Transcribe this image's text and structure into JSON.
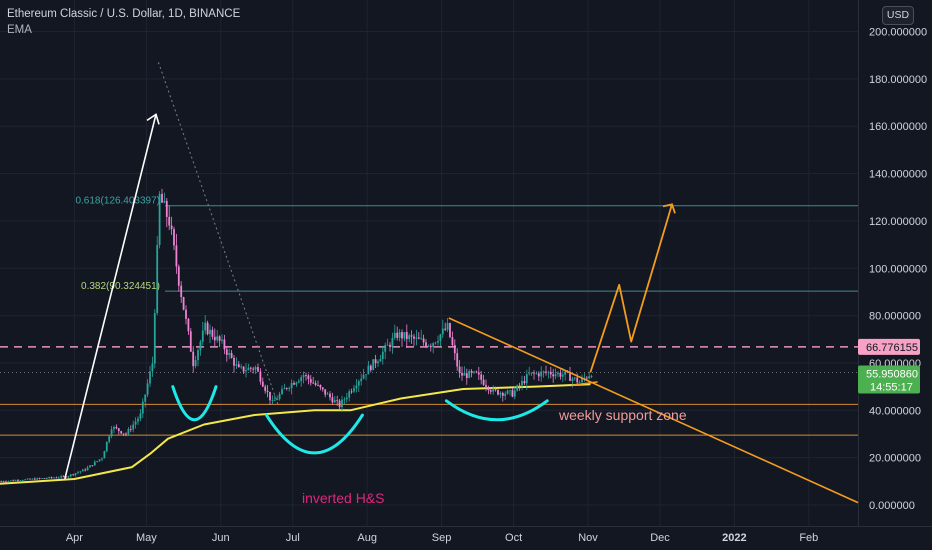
{
  "header": {
    "title": "Ethereum Classic / U.S. Dollar, 1D, BINANCE",
    "indicator": "EMA",
    "currency_button": "USD"
  },
  "colors": {
    "background": "#131722",
    "grid": "#1f2331",
    "axis_text": "#d1d4dc",
    "candle_up": "#26a69a",
    "candle_down": "#ef83d4",
    "ema": "#f3e84b",
    "fib_line": "#3d8c8c",
    "fib_618_text": "#3fa3a3",
    "fib_382_text": "#b7d87a",
    "support_line": "#d38b2c",
    "orange": "#f39c1e",
    "arrow_white": "#ffffff",
    "dashed_pink": "#e993c4",
    "cyan": "#1de9e9",
    "label_pink": "#e0267d",
    "label_salmon": "#f29b9b",
    "price_tag_pink": "#f7a1c4",
    "price_tag_green": "#4caf50"
  },
  "chart_data": {
    "type": "candlestick",
    "symbol": "ETCUSD",
    "interval": "1D",
    "exchange": "BINANCE",
    "x_ticks": [
      "Apr",
      "May",
      "Jun",
      "Jul",
      "Aug",
      "Sep",
      "Oct",
      "Nov",
      "Dec",
      "2022",
      "Feb"
    ],
    "y_ticks": [
      "0.000000",
      "20.000000",
      "40.000000",
      "60.000000",
      "80.000000",
      "100.000000",
      "120.000000",
      "140.000000",
      "160.000000",
      "180.000000",
      "200.000000"
    ],
    "ylim": [
      -2,
      200
    ],
    "price_series_approx": [
      {
        "date": "2021-03-01",
        "close": 10
      },
      {
        "date": "2021-03-15",
        "close": 11
      },
      {
        "date": "2021-03-28",
        "close": 12
      },
      {
        "date": "2021-04-05",
        "close": 15
      },
      {
        "date": "2021-04-12",
        "close": 20
      },
      {
        "date": "2021-04-16",
        "close": 33
      },
      {
        "date": "2021-04-22",
        "close": 30
      },
      {
        "date": "2021-04-28",
        "close": 38
      },
      {
        "date": "2021-05-03",
        "close": 60
      },
      {
        "date": "2021-05-06",
        "close": 130
      },
      {
        "date": "2021-05-10",
        "close": 120
      },
      {
        "date": "2021-05-14",
        "close": 95
      },
      {
        "date": "2021-05-20",
        "close": 60
      },
      {
        "date": "2021-05-25",
        "close": 75
      },
      {
        "date": "2021-06-01",
        "close": 68
      },
      {
        "date": "2021-06-08",
        "close": 57
      },
      {
        "date": "2021-06-15",
        "close": 58
      },
      {
        "date": "2021-06-22",
        "close": 43
      },
      {
        "date": "2021-06-28",
        "close": 50
      },
      {
        "date": "2021-07-05",
        "close": 55
      },
      {
        "date": "2021-07-12",
        "close": 49
      },
      {
        "date": "2021-07-20",
        "close": 42
      },
      {
        "date": "2021-07-27",
        "close": 52
      },
      {
        "date": "2021-08-05",
        "close": 62
      },
      {
        "date": "2021-08-13",
        "close": 72
      },
      {
        "date": "2021-08-20",
        "close": 70
      },
      {
        "date": "2021-08-27",
        "close": 68
      },
      {
        "date": "2021-09-03",
        "close": 75
      },
      {
        "date": "2021-09-08",
        "close": 55
      },
      {
        "date": "2021-09-15",
        "close": 55
      },
      {
        "date": "2021-09-22",
        "close": 48
      },
      {
        "date": "2021-09-30",
        "close": 47
      },
      {
        "date": "2021-10-07",
        "close": 55
      },
      {
        "date": "2021-10-15",
        "close": 56
      },
      {
        "date": "2021-10-22",
        "close": 55
      },
      {
        "date": "2021-10-28",
        "close": 52
      },
      {
        "date": "2021-11-02",
        "close": 56
      }
    ],
    "ema_series_approx": [
      {
        "date": "2021-03-01",
        "value": 9
      },
      {
        "date": "2021-04-01",
        "value": 11
      },
      {
        "date": "2021-04-25",
        "value": 16
      },
      {
        "date": "2021-05-03",
        "value": 22
      },
      {
        "date": "2021-05-10",
        "value": 28
      },
      {
        "date": "2021-05-25",
        "value": 34
      },
      {
        "date": "2021-06-15",
        "value": 38
      },
      {
        "date": "2021-07-10",
        "value": 40
      },
      {
        "date": "2021-07-25",
        "value": 40
      },
      {
        "date": "2021-08-15",
        "value": 45
      },
      {
        "date": "2021-09-10",
        "value": 49
      },
      {
        "date": "2021-10-10",
        "value": 50
      },
      {
        "date": "2021-11-02",
        "value": 51
      }
    ],
    "horizontal_levels": [
      {
        "label": "0.618(126.403397)",
        "value": 126.403397,
        "kind": "fib"
      },
      {
        "label": "0.382(90.324451)",
        "value": 90.324451,
        "kind": "fib"
      },
      {
        "value": 66.776155,
        "kind": "dashed",
        "price_label": "66.776155"
      },
      {
        "value": 42.5,
        "kind": "support"
      },
      {
        "value": 29.5,
        "kind": "support"
      }
    ],
    "current_price": {
      "value": 55.95086,
      "label": "55.950860",
      "countdown": "14:55:17"
    },
    "annotations": [
      {
        "text": "inverted H&S"
      },
      {
        "text": "weekly support zone"
      }
    ],
    "legend": "none"
  }
}
